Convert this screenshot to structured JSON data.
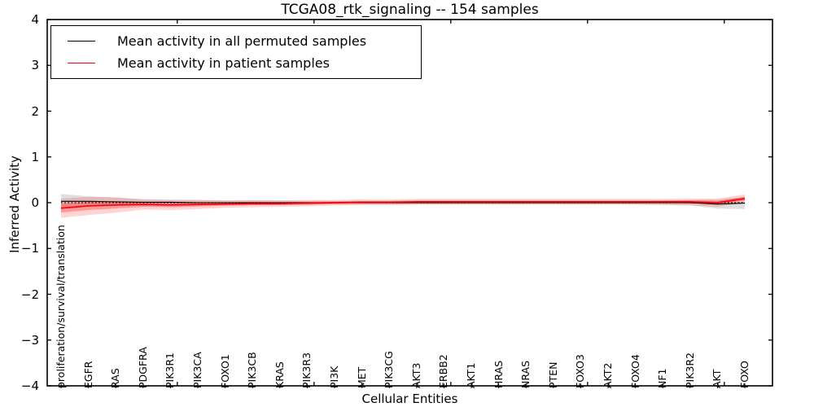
{
  "title": "TCGA08_rtk_signaling -- 154 samples",
  "xlabel": "Cellular Entities",
  "ylabel": "Inferred Activity",
  "legend": [
    {
      "label": "Mean activity in all permuted samples",
      "color": "#000000"
    },
    {
      "label": "Mean activity in patient samples",
      "color": "#ff0000"
    }
  ],
  "colors": {
    "permuted_line": "#000000",
    "patient_line": "#ff0000",
    "permuted_band": "#808080",
    "patient_band": "#ff0000",
    "zero_line": "#000000",
    "frame": "#000000",
    "background": "#ffffff"
  },
  "chart_data": {
    "type": "line",
    "title": "TCGA08_rtk_signaling -- 154 samples",
    "xlabel": "Cellular Entities",
    "ylabel": "Inferred Activity",
    "ylim": [
      -4,
      4
    ],
    "yticks": [
      -4,
      -3,
      -2,
      -1,
      0,
      1,
      2,
      3,
      4
    ],
    "grid": false,
    "legend_position": "upper left",
    "major_tick_positions": [
      4.25,
      9.25,
      14.25,
      19.25,
      24.25
    ],
    "categories": [
      "proliferation/survival/translation",
      "EGFR",
      "RAS",
      "PDGFRA",
      "PIK3R1",
      "PIK3CA",
      "FOXO1",
      "PIK3CB",
      "KRAS",
      "PIK3R3",
      "PI3K",
      "MET",
      "PIK3CG",
      "AKT3",
      "ERBB2",
      "AKT1",
      "HRAS",
      "NRAS",
      "PTEN",
      "FOXO3",
      "AKT2",
      "FOXO4",
      "NF1",
      "PIK3R2",
      "AKT",
      "FOXO"
    ],
    "zero_reference": 0,
    "series": [
      {
        "name": "Mean activity in all permuted samples",
        "color": "#000000",
        "style": "solid",
        "values": [
          0.03,
          0.03,
          0.02,
          0.01,
          0.01,
          0.0,
          0.0,
          0.0,
          0.0,
          0.0,
          0.0,
          0.0,
          0.0,
          0.0,
          0.0,
          0.0,
          0.0,
          0.0,
          0.0,
          0.0,
          0.0,
          0.0,
          0.0,
          0.0,
          -0.03,
          -0.01
        ],
        "band_std": [
          0.16,
          0.11,
          0.09,
          0.07,
          0.06,
          0.06,
          0.05,
          0.05,
          0.05,
          0.04,
          0.04,
          0.04,
          0.04,
          0.04,
          0.04,
          0.04,
          0.04,
          0.04,
          0.04,
          0.04,
          0.04,
          0.04,
          0.05,
          0.06,
          0.1,
          0.13
        ]
      },
      {
        "name": "Mean activity in patient samples",
        "color": "#ff0000",
        "style": "solid",
        "values": [
          -0.12,
          -0.07,
          -0.05,
          -0.04,
          -0.05,
          -0.04,
          -0.03,
          -0.02,
          -0.02,
          -0.01,
          0.0,
          0.01,
          0.01,
          0.02,
          0.02,
          0.02,
          0.02,
          0.02,
          0.02,
          0.02,
          0.02,
          0.02,
          0.02,
          0.02,
          0.0,
          0.09
        ],
        "band_std": [
          0.21,
          0.2,
          0.17,
          0.11,
          0.11,
          0.1,
          0.08,
          0.08,
          0.07,
          0.07,
          0.06,
          0.06,
          0.06,
          0.06,
          0.06,
          0.06,
          0.06,
          0.06,
          0.06,
          0.06,
          0.06,
          0.06,
          0.06,
          0.07,
          0.09,
          0.09
        ]
      }
    ]
  }
}
